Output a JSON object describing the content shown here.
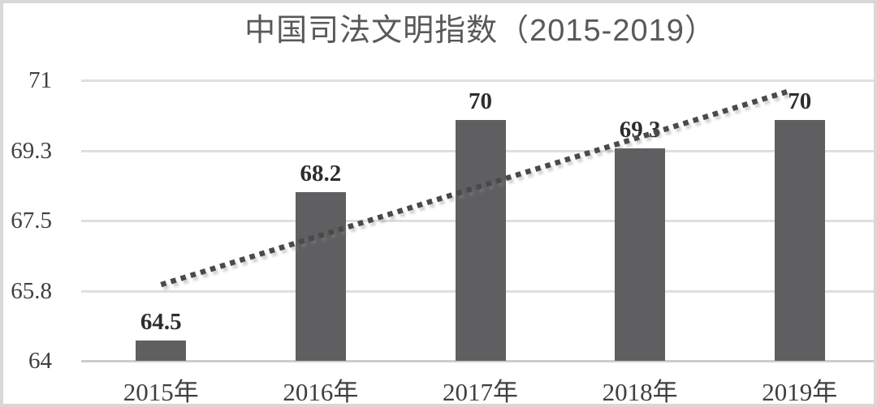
{
  "frame": {
    "border_color": "#d8d8d8",
    "background": "#ffffff"
  },
  "chart_data": {
    "type": "bar",
    "title": "中国司法文明指数（2015-2019）",
    "categories": [
      "2015年",
      "2016年",
      "2017年",
      "2018年",
      "2019年"
    ],
    "values": [
      64.5,
      68.2,
      70,
      69.3,
      70
    ],
    "data_labels": [
      "64.5",
      "68.2",
      "70",
      "69.3",
      "70"
    ],
    "y_tick_labels": [
      "71",
      "69.3",
      "67.5",
      "65.8",
      "64"
    ],
    "ylim": [
      64,
      71
    ],
    "xlabel": "",
    "ylabel": "",
    "grid": true,
    "legend_position": "none",
    "trendline": {
      "style": "dotted",
      "start": {
        "x_index": 0,
        "value": 65.9
      },
      "end": {
        "x_index": 3.95,
        "value": 70.75
      }
    },
    "colors": {
      "bar": "#5f5f61",
      "gridline": "#dfdfdf",
      "baseline": "#cccccc",
      "title": "#595959",
      "axis_label": "#3f3f3f",
      "data_label": "#2d2d2d",
      "trendline": "#4a4a4a"
    }
  }
}
